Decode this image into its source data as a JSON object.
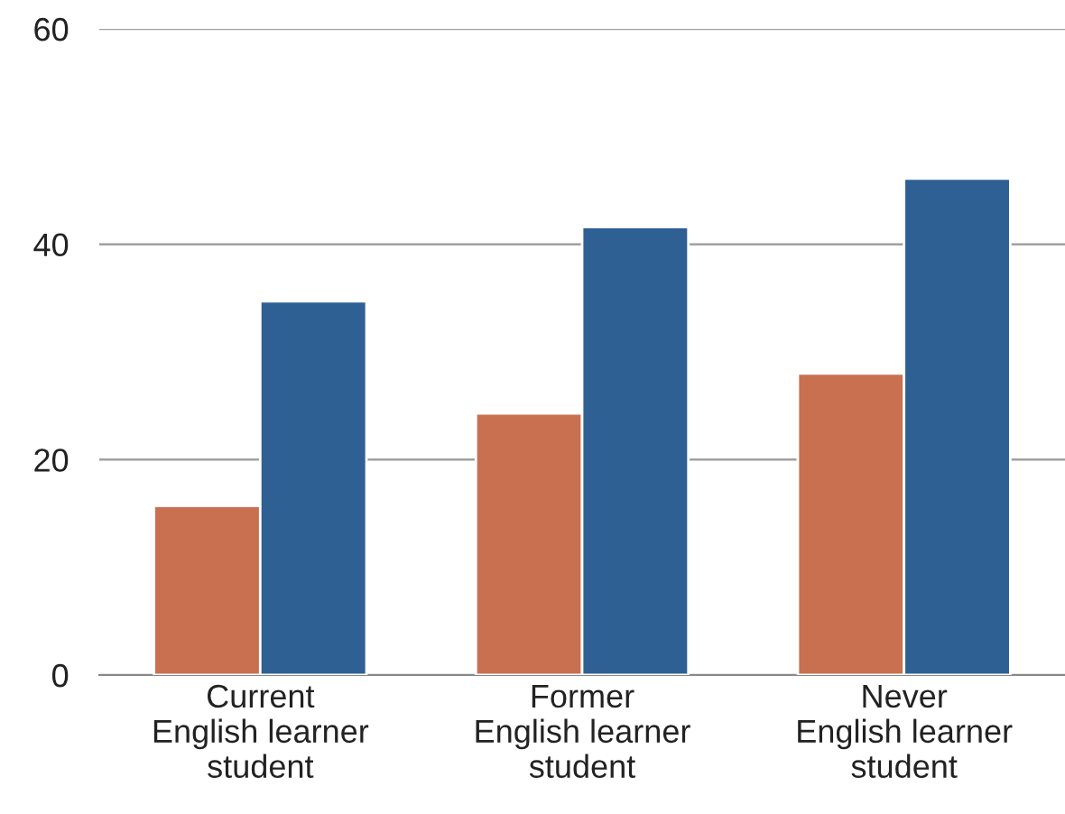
{
  "chart_data": {
    "type": "bar",
    "categories": [
      "Current\nEnglish learner\nstudent",
      "Former\nEnglish learner\nstudent",
      "Never\nEnglish learner\nstudent"
    ],
    "series": [
      {
        "color": "#c8704f",
        "values": [
          15.7,
          24.3,
          28.0
        ]
      },
      {
        "color": "#2e6094",
        "values": [
          34.7,
          41.6,
          46.1
        ]
      }
    ],
    "ylim": [
      0,
      60
    ],
    "yticks": [
      0,
      20,
      40,
      60
    ],
    "grid": "y",
    "legend": false
  }
}
